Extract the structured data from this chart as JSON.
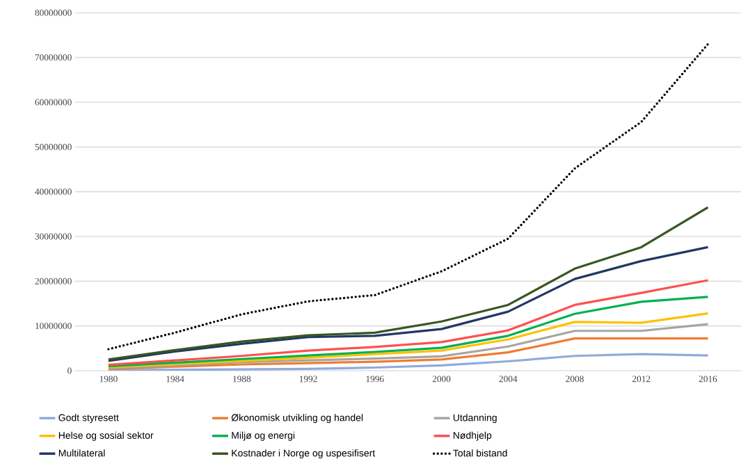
{
  "chart_data": {
    "type": "line",
    "categories": [
      "1980",
      "1984",
      "1988",
      "1992",
      "1996",
      "2000",
      "2004",
      "2008",
      "2012",
      "2016"
    ],
    "ylim": [
      0,
      80000000
    ],
    "yticks": [
      0,
      10000000,
      20000000,
      30000000,
      40000000,
      50000000,
      60000000,
      70000000,
      80000000
    ],
    "grid": "y",
    "legend": "bottom",
    "marker": "none",
    "series": [
      {
        "name": "Godt styresett",
        "color": "#8faadc",
        "line_style": "solid",
        "values": [
          100000,
          200000,
          300000,
          400000,
          700000,
          1200000,
          2100000,
          3300000,
          3700000,
          3400000
        ]
      },
      {
        "name": "Økonomisk utvikling og handel",
        "color": "#ed7d31",
        "line_style": "solid",
        "values": [
          400000,
          900000,
          1400000,
          1700000,
          2000000,
          2500000,
          4100000,
          7200000,
          7200000,
          7200000
        ]
      },
      {
        "name": "Utdanning",
        "color": "#a5a5a5",
        "line_style": "solid",
        "values": [
          600000,
          1200000,
          1900000,
          2300000,
          2700000,
          3200000,
          5400000,
          8900000,
          8900000,
          10400000
        ]
      },
      {
        "name": "Helse og sosial sektor",
        "color": "#ffc000",
        "line_style": "solid",
        "values": [
          800000,
          1500000,
          2200000,
          2900000,
          3700000,
          4500000,
          7000000,
          10900000,
          10700000,
          12800000
        ]
      },
      {
        "name": "Miljø og energi",
        "color": "#00b050",
        "line_style": "solid",
        "values": [
          1000000,
          1800000,
          2600000,
          3400000,
          4200000,
          5100000,
          7800000,
          12700000,
          15400000,
          16500000
        ]
      },
      {
        "name": "Nødhjelp",
        "color": "#ff5050",
        "line_style": "solid",
        "values": [
          1300000,
          2300000,
          3300000,
          4500000,
          5300000,
          6400000,
          9000000,
          14700000,
          17400000,
          20200000
        ]
      },
      {
        "name": "Multilateral",
        "color": "#203864",
        "line_style": "solid",
        "values": [
          2200000,
          4300000,
          6000000,
          7500000,
          7800000,
          9300000,
          13200000,
          20500000,
          24500000,
          27600000
        ]
      },
      {
        "name": "Kostnader i Norge og uspesifisert",
        "color": "#375623",
        "line_style": "solid",
        "values": [
          2500000,
          4600000,
          6500000,
          7900000,
          8500000,
          11000000,
          14700000,
          22800000,
          27600000,
          36500000
        ]
      },
      {
        "name": "Total bistand",
        "color": "#000000",
        "line_style": "dotted",
        "values": [
          4800000,
          8500000,
          12600000,
          15500000,
          16900000,
          22200000,
          29500000,
          45200000,
          55600000,
          73000000
        ]
      }
    ]
  }
}
